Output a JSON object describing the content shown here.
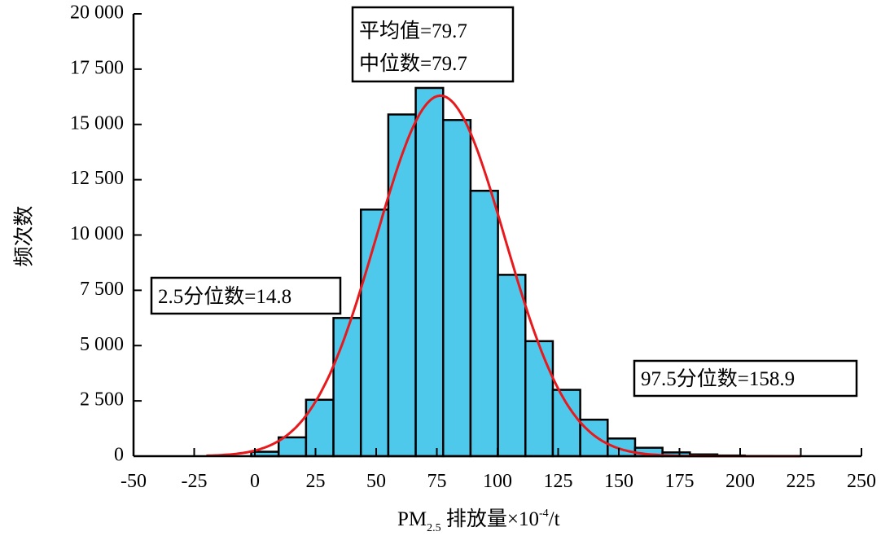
{
  "chart_data": {
    "type": "bar",
    "xlabel": {
      "main": "PM",
      "sub": "2.5",
      "rest": " 排放量×10",
      "sup": "-4",
      "unit": "/t"
    },
    "ylabel": "频次数",
    "xlim": [
      -50,
      250
    ],
    "ylim": [
      0,
      20000
    ],
    "x_ticks": [
      -50,
      -25,
      0,
      25,
      50,
      75,
      100,
      125,
      150,
      175,
      200,
      225,
      250
    ],
    "x_tick_labels": [
      "-50",
      "-25",
      "0",
      "25",
      "50",
      "75",
      "100",
      "125",
      "150",
      "175",
      "200",
      "225",
      "250"
    ],
    "y_ticks": [
      0,
      2500,
      5000,
      7500,
      10000,
      12500,
      15000,
      17500,
      20000
    ],
    "y_tick_labels": [
      "0",
      "2 500",
      "5 000",
      "7 500",
      "10 000",
      "12 500",
      "15 000",
      "17 500",
      "20 000"
    ],
    "bin_width": 11.3,
    "bins": [
      {
        "start": -1.5,
        "value": 200
      },
      {
        "start": 9.8,
        "value": 850
      },
      {
        "start": 21.1,
        "value": 2550
      },
      {
        "start": 32.4,
        "value": 6250
      },
      {
        "start": 43.7,
        "value": 11150
      },
      {
        "start": 55.0,
        "value": 15450
      },
      {
        "start": 66.3,
        "value": 16650
      },
      {
        "start": 77.6,
        "value": 15200
      },
      {
        "start": 88.9,
        "value": 12000
      },
      {
        "start": 100.2,
        "value": 8200
      },
      {
        "start": 111.5,
        "value": 5200
      },
      {
        "start": 122.8,
        "value": 3000
      },
      {
        "start": 134.1,
        "value": 1650
      },
      {
        "start": 145.4,
        "value": 800
      },
      {
        "start": 156.7,
        "value": 380
      },
      {
        "start": 168.0,
        "value": 170
      },
      {
        "start": 179.3,
        "value": 80
      },
      {
        "start": 190.6,
        "value": 30
      },
      {
        "start": 201.9,
        "value": 10
      }
    ],
    "fit_curve": {
      "type": "normal",
      "mean": 76.5,
      "sd": 26.5,
      "peak": 16300,
      "color": "#e8191c"
    },
    "bar_color": "#4ec9ec",
    "grid": false,
    "annotations": [
      {
        "lines": [
          "平均值=79.7",
          "中位数=79.7"
        ]
      },
      {
        "lines": [
          "2.5分位数=14.8"
        ]
      },
      {
        "lines": [
          "97.5分位数=158.9"
        ]
      }
    ]
  }
}
